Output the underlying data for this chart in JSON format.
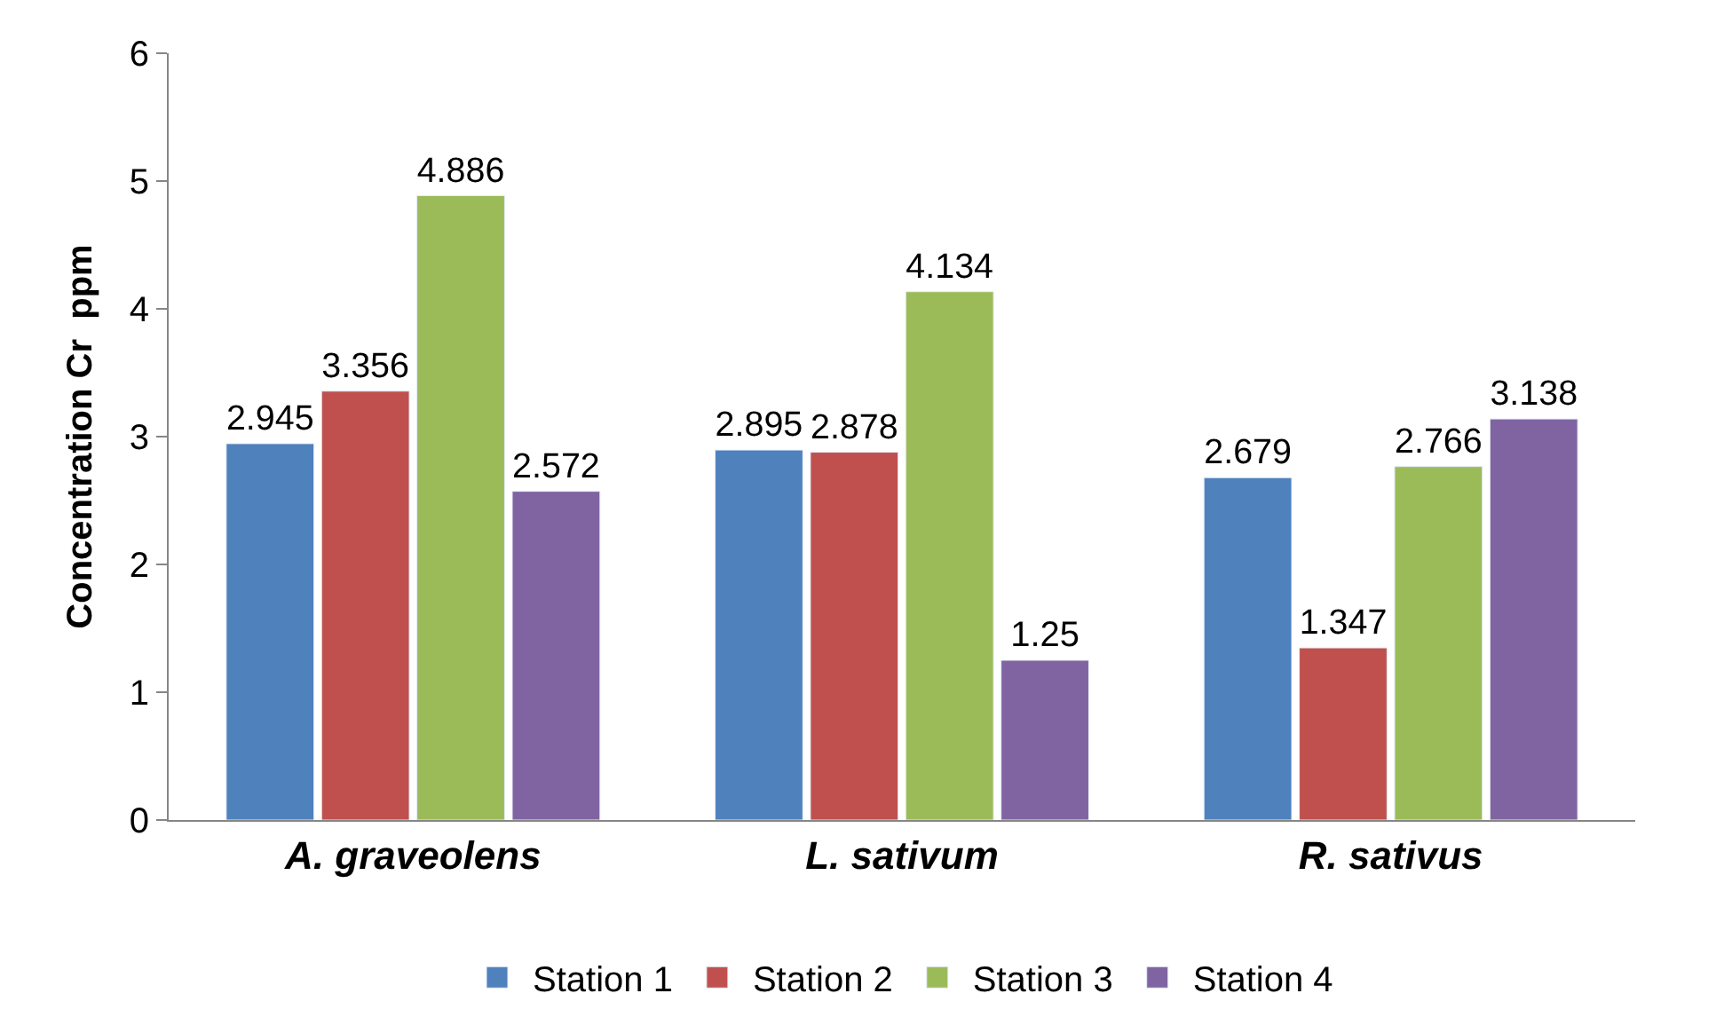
{
  "chart_data": {
    "type": "bar",
    "ylabel": "Concentration Cr  ppm",
    "categories": [
      "A. graveolens",
      "L. sativum",
      "R. sativus"
    ],
    "series": [
      {
        "name": "Station 1",
        "color": "#4f81bd",
        "values": [
          2.945,
          2.895,
          2.679
        ]
      },
      {
        "name": "Station 2",
        "color": "#c0504d",
        "values": [
          3.356,
          2.878,
          1.347
        ]
      },
      {
        "name": "Station 3",
        "color": "#9bbb59",
        "values": [
          4.886,
          4.134,
          2.766
        ]
      },
      {
        "name": "Station 4",
        "color": "#8064a2",
        "values": [
          2.572,
          1.25,
          3.138
        ]
      }
    ],
    "ylim": [
      0,
      6
    ],
    "yticks": [
      0,
      1,
      2,
      3,
      4,
      5,
      6
    ],
    "legend": "bottom",
    "data_labels": true
  }
}
